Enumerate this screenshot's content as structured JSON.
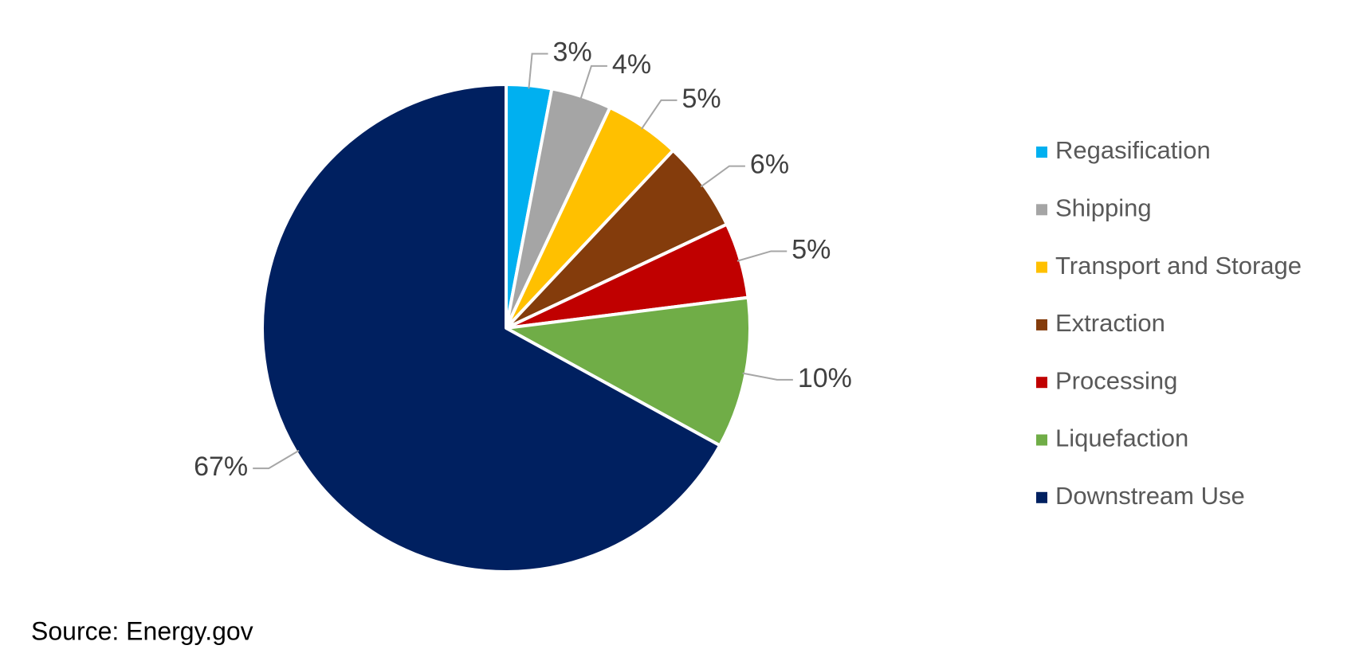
{
  "chart_data": {
    "type": "pie",
    "categories": [
      "Regasification",
      "Shipping",
      "Transport and Storage",
      "Extraction",
      "Processing",
      "Liquefaction",
      "Downstream Use"
    ],
    "values": [
      3,
      4,
      5,
      6,
      5,
      10,
      67
    ],
    "value_labels": [
      "3%",
      "4%",
      "5%",
      "6%",
      "5%",
      "10%",
      "67%"
    ],
    "colors": [
      "#00b0f0",
      "#a5a5a5",
      "#ffc000",
      "#843c0c",
      "#c00000",
      "#70ad47",
      "#002060"
    ],
    "legend": "right",
    "source": "Source: Energy.gov"
  }
}
